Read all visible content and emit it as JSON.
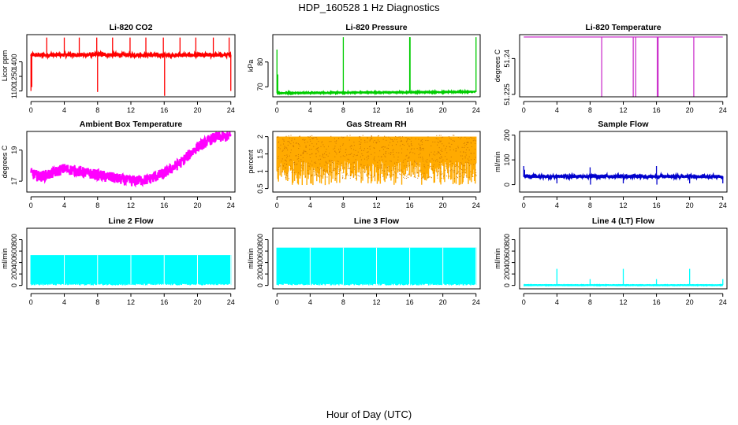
{
  "figure": {
    "title": "HDP_160528  1 Hz Diagnostics",
    "xlabel": "Hour of Day (UTC)"
  },
  "chart_data": [
    {
      "id": "p1",
      "type": "line",
      "title": "Li-820 CO2",
      "ylabel": "Licor ppm",
      "color": "#ff0000",
      "xlim": [
        -0.5,
        24.5
      ],
      "ylim": [
        1040,
        1680
      ],
      "xticks": [
        0,
        4,
        8,
        12,
        16,
        20,
        24
      ],
      "yticks": [
        1100,
        1250,
        1400
      ],
      "baseline": [
        [
          0,
          1470
        ],
        [
          4,
          1472
        ],
        [
          8,
          1474
        ],
        [
          12,
          1472
        ],
        [
          16,
          1470
        ],
        [
          20,
          1469
        ],
        [
          24,
          1470
        ]
      ],
      "noise": 18,
      "spikes": [
        [
          0,
          1100
        ],
        [
          0.1,
          1140
        ],
        [
          1.9,
          1650
        ],
        [
          4,
          1650
        ],
        [
          5.8,
          1650
        ],
        [
          7.9,
          1650
        ],
        [
          8,
          1090
        ],
        [
          9.8,
          1650
        ],
        [
          11.9,
          1650
        ],
        [
          13.8,
          1650
        ],
        [
          15.9,
          1650
        ],
        [
          16.05,
          1050
        ],
        [
          17.9,
          1650
        ],
        [
          19.8,
          1650
        ],
        [
          21.9,
          1650
        ],
        [
          23.8,
          1650
        ],
        [
          24,
          1100
        ]
      ]
    },
    {
      "id": "p2",
      "type": "line",
      "title": "Li-820 Pressure",
      "ylabel": "kPa",
      "color": "#00cc00",
      "xlim": [
        -0.5,
        24.5
      ],
      "ylim": [
        66,
        91
      ],
      "xticks": [
        0,
        4,
        8,
        12,
        16,
        20,
        24
      ],
      "yticks": [
        70,
        80
      ],
      "baseline": [
        [
          0,
          67.5
        ],
        [
          24,
          68
        ]
      ],
      "noise": 0.2,
      "spikes": [
        [
          0,
          85
        ],
        [
          0.1,
          75
        ],
        [
          8,
          90
        ],
        [
          16,
          90
        ],
        [
          16.05,
          90
        ],
        [
          24,
          90
        ]
      ]
    },
    {
      "id": "p3",
      "type": "line",
      "title": "Li-820 Temperature",
      "ylabel": "degrees C",
      "color": "#cc33cc",
      "xlim": [
        -0.5,
        24.5
      ],
      "ylim": [
        51.224,
        51.25
      ],
      "xticks": [
        0,
        4,
        8,
        12,
        16,
        20,
        24
      ],
      "yticks": [
        51.225,
        51.24
      ],
      "baseline": [
        [
          0,
          51.249
        ],
        [
          24,
          51.249
        ]
      ],
      "noise": 0,
      "spikes": [
        [
          9.4,
          51.224
        ],
        [
          13.2,
          51.224
        ],
        [
          13.5,
          51.224
        ],
        [
          16.1,
          51.224
        ],
        [
          16.2,
          51.224
        ],
        [
          20.5,
          51.224
        ]
      ]
    },
    {
      "id": "p4",
      "type": "line",
      "title": "Ambient Box Temperature",
      "ylabel": "degrees C",
      "color": "#ff00ff",
      "xlim": [
        -0.5,
        24.5
      ],
      "ylim": [
        16.3,
        20.2
      ],
      "xticks": [
        0,
        4,
        8,
        12,
        16,
        20,
        24
      ],
      "yticks": [
        17,
        19
      ],
      "baseline": [
        [
          0,
          17.5
        ],
        [
          1,
          17.3
        ],
        [
          2,
          17.4
        ],
        [
          4,
          17.8
        ],
        [
          6,
          17.6
        ],
        [
          8,
          17.4
        ],
        [
          10,
          17.2
        ],
        [
          12,
          17.0
        ],
        [
          14,
          17.1
        ],
        [
          16,
          17.5
        ],
        [
          18,
          18.2
        ],
        [
          20,
          19.2
        ],
        [
          22,
          19.8
        ],
        [
          24,
          19.9
        ]
      ],
      "noise": 0.35,
      "spikes": []
    },
    {
      "id": "p5",
      "type": "band",
      "title": "Gas Stream RH",
      "ylabel": "percent",
      "color": "#ffaa00",
      "xlim": [
        -0.5,
        24.5
      ],
      "ylim": [
        0.4,
        2.15
      ],
      "xticks": [
        0,
        4,
        8,
        12,
        16,
        20,
        24
      ],
      "yticks": [
        0.5,
        1.0,
        1.5,
        2.0
      ],
      "upper": 2.0,
      "lower_min": 0.6,
      "lower_max": 1.3
    },
    {
      "id": "p6",
      "type": "line",
      "title": "Sample Flow",
      "ylabel": "ml/min",
      "color": "#0000cc",
      "xlim": [
        -0.5,
        24.5
      ],
      "ylim": [
        -30,
        215
      ],
      "xticks": [
        0,
        4,
        8,
        12,
        16,
        20,
        24
      ],
      "yticks": [
        0,
        100,
        200
      ],
      "baseline": [
        [
          0,
          33
        ],
        [
          24,
          33
        ]
      ],
      "noise": 6,
      "spikes": [
        [
          0,
          75
        ],
        [
          0.1,
          60
        ],
        [
          4,
          5
        ],
        [
          8,
          70
        ],
        [
          8.05,
          0
        ],
        [
          12,
          5
        ],
        [
          16,
          75
        ],
        [
          16.05,
          0
        ],
        [
          20,
          5
        ],
        [
          24,
          5
        ]
      ]
    },
    {
      "id": "p7",
      "type": "band",
      "title": "Line 2 Flow",
      "ylabel": "ml/min",
      "color": "#00ffff",
      "xlim": [
        -0.5,
        24.5
      ],
      "ylim": [
        -60,
        1000
      ],
      "xticks": [
        0,
        4,
        8,
        12,
        16,
        20,
        24
      ],
      "yticks": [
        0,
        200,
        400,
        600,
        800
      ],
      "upper": 530,
      "lower_min": 0,
      "lower_max": 30,
      "gaps": [
        4,
        8,
        12,
        16,
        20,
        24
      ]
    },
    {
      "id": "p8",
      "type": "band",
      "title": "Line 3 Flow",
      "ylabel": "ml/min",
      "color": "#00ffff",
      "xlim": [
        -0.5,
        24.5
      ],
      "ylim": [
        -60,
        1000
      ],
      "xticks": [
        0,
        4,
        8,
        12,
        16,
        20,
        24
      ],
      "yticks": [
        0,
        200,
        400,
        600,
        800
      ],
      "upper": 660,
      "lower_min": 0,
      "lower_max": 30,
      "gaps": [
        4,
        8,
        12,
        16,
        20,
        24
      ]
    },
    {
      "id": "p9",
      "type": "line",
      "title": "Line 4 (LT) Flow",
      "ylabel": "ml/min",
      "color": "#00ffff",
      "xlim": [
        -0.5,
        24.5
      ],
      "ylim": [
        -60,
        1000
      ],
      "xticks": [
        0,
        4,
        8,
        12,
        16,
        20,
        24
      ],
      "yticks": [
        0,
        200,
        400,
        600,
        800
      ],
      "baseline": [
        [
          0,
          5
        ],
        [
          24,
          5
        ]
      ],
      "noise": 3,
      "spikes": [
        [
          4,
          290
        ],
        [
          8,
          110
        ],
        [
          12,
          290
        ],
        [
          16,
          110
        ],
        [
          20,
          290
        ],
        [
          24,
          110
        ]
      ]
    }
  ]
}
